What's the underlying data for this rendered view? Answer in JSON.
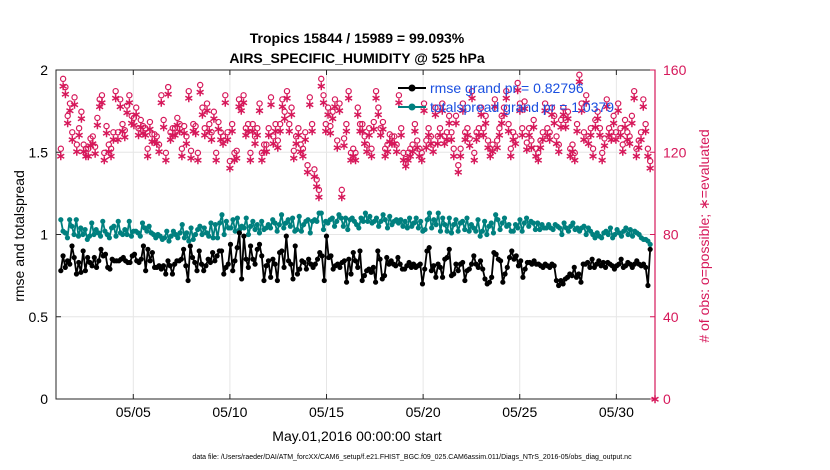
{
  "title_line1": "Tropics 15844 / 15989 = 99.093%",
  "title_line2": "AIRS_SPECIFIC_HUMIDITY @ 525 hPa",
  "xlabel": "May.01,2016 00:00:00 start",
  "ylabel": "rmse and totalspread",
  "y2label": "# of obs: o=possible; ∗=evaluated",
  "footer": "data file: /Users/raeder/DAI/ATM_forcXX/CAM6_setup/f.e21.FHIST_BGC.f09_025.CAM6assim.011/Diags_NTrS_2016-05/obs_diag_output.nc",
  "colors": {
    "rmse": "#000000",
    "spread": "#00807f",
    "obs": "#d6185a",
    "legend_text": "#1a4fe0"
  },
  "chart_data": {
    "type": "line",
    "xlim": [
      1,
      32
    ],
    "ylim": [
      0,
      2
    ],
    "y2lim": [
      0,
      160
    ],
    "grid": true,
    "legend_location": "top-right",
    "xticks": [
      5,
      10,
      15,
      20,
      25,
      30
    ],
    "xtick_labels": [
      "05/05",
      "05/10",
      "05/15",
      "05/20",
      "05/25",
      "05/30"
    ],
    "yticks": [
      0,
      0.5,
      1,
      1.5,
      2
    ],
    "ytick_labels": [
      "0",
      "0.5",
      "1",
      "1.5",
      "2"
    ],
    "y2ticks": [
      0,
      40,
      80,
      120,
      160
    ],
    "y2tick_labels": [
      "0",
      "40",
      "80",
      "120",
      "160"
    ],
    "series": [
      {
        "name": "rmse grand pr = 0.82796",
        "axis": "left",
        "values": [
          0.78,
          0.87,
          0.8,
          0.84,
          0.82,
          0.93,
          0.86,
          0.76,
          0.83,
          0.77,
          0.9,
          0.78,
          0.86,
          0.83,
          0.81,
          0.86,
          0.8,
          0.84,
          0.91,
          0.87,
          0.88,
          0.8,
          0.79,
          0.85,
          0.84,
          0.84,
          0.84,
          0.85,
          0.86,
          0.84,
          0.83,
          0.83,
          0.87,
          0.88,
          0.84,
          0.83,
          0.85,
          0.93,
          0.78,
          0.91,
          0.84,
          0.89,
          0.8,
          0.8,
          0.81,
          0.79,
          0.81,
          0.76,
          0.84,
          0.81,
          0.76,
          0.82,
          0.84,
          0.84,
          0.85,
          0.91,
          0.81,
          0.72,
          0.93,
          0.86,
          0.83,
          0.78,
          0.9,
          0.82,
          0.78,
          0.81,
          0.85,
          0.83,
          0.89,
          0.84,
          0.87,
          0.9,
          0.9,
          0.76,
          0.8,
          0.82,
          0.94,
          0.78,
          0.84,
          0.92,
          1.01,
          0.73,
          0.99,
          0.85,
          0.8,
          0.93,
          0.85,
          0.82,
          0.91,
          0.94,
          0.87,
          0.72,
          0.81,
          0.84,
          0.74,
          0.85,
          0.82,
          0.72,
          0.89,
          0.9,
          0.8,
          0.99,
          0.84,
          0.82,
          0.73,
          0.93,
          0.76,
          0.79,
          0.84,
          0.83,
          0.79,
          0.85,
          0.82,
          0.8,
          0.82,
          0.85,
          0.89,
          0.87,
          0.72,
          0.99,
          0.86,
          0.87,
          0.79,
          0.81,
          0.82,
          0.8,
          0.83,
          0.84,
          0.71,
          0.85,
          0.76,
          0.89,
          0.84,
          0.8,
          0.9,
          0.72,
          0.75,
          0.78,
          0.79,
          0.77,
          0.8,
          0.71,
          0.9,
          0.85,
          0.73,
          0.75,
          0.86,
          0.82,
          0.84,
          0.82,
          0.81,
          0.86,
          0.82,
          0.79,
          0.79,
          0.81,
          0.83,
          0.8,
          0.82,
          0.8,
          0.81,
          0.82,
          0.7,
          0.79,
          0.9,
          0.92,
          0.78,
          0.81,
          0.74,
          0.82,
          0.8,
          0.74,
          0.85,
          0.86,
          0.91,
          0.75,
          0.76,
          0.82,
          0.78,
          0.82,
          0.83,
          0.72,
          0.78,
          0.79,
          0.82,
          0.87,
          0.82,
          0.8,
          0.84,
          0.79,
          0.73,
          0.7,
          0.71,
          0.74,
          0.89,
          0.88,
          0.85,
          0.84,
          0.71,
          0.76,
          0.8,
          0.86,
          0.9,
          0.85,
          0.87,
          0.81,
          0.84,
          0.74,
          0.79,
          0.83,
          0.83,
          0.82,
          0.84,
          0.82,
          0.82,
          0.81,
          0.8,
          0.82,
          0.81,
          0.8,
          0.82,
          0.81,
          0.72,
          0.69,
          0.72,
          0.7,
          0.73,
          0.74,
          0.76,
          0.75,
          0.8,
          0.74,
          0.76,
          0.71,
          0.82,
          0.82,
          0.83,
          0.8,
          0.85,
          0.8,
          0.82,
          0.84,
          0.81,
          0.83,
          0.8,
          0.83,
          0.82,
          0.81,
          0.79,
          0.81,
          0.82,
          0.85,
          0.8,
          0.81,
          0.83,
          0.82,
          0.8,
          0.82,
          0.84,
          0.82,
          0.81,
          0.82,
          0.8,
          0.69,
          0.91
        ]
      },
      {
        "name": "totalspread grand pr = 1.0379",
        "axis": "left",
        "values": [
          1.09,
          1.02,
          1.01,
          0.98,
          1.09,
          1.05,
          1.0,
          1.09,
          0.99,
          1.04,
          1.0,
          1.03,
          0.97,
          0.99,
          1.07,
          1.0,
          1.03,
          1.01,
          0.99,
          1.08,
          1.02,
          1.0,
          0.98,
          1.04,
          1.05,
          0.99,
          1.08,
          1.01,
          1.0,
          1.03,
          1.0,
          1.08,
          0.99,
          1.02,
          1.02,
          1.01,
          0.99,
          1.07,
          1.04,
          1.02,
          1.05,
          1.01,
          1.0,
          0.98,
          1.0,
          0.99,
          0.97,
          0.98,
          1.02,
          0.96,
          0.99,
          1.02,
          1.0,
          0.98,
          1.01,
          1.06,
          0.98,
          1.01,
          0.96,
          1.04,
          0.97,
          1.0,
          1.03,
          1.05,
          1.0,
          1.04,
          1.01,
          0.99,
          1.07,
          0.98,
          1.06,
          0.98,
          1.07,
          1.12,
          1.0,
          1.08,
          1.04,
          1.04,
          1.09,
          1.02,
          1.1,
          1.03,
          1.05,
          1.04,
          1.1,
          1.0,
          1.05,
          1.08,
          1.03,
          1.06,
          1.01,
          1.08,
          1.03,
          1.04,
          1.06,
          1.04,
          1.09,
          1.07,
          1.02,
          1.06,
          1.12,
          1.04,
          1.07,
          1.09,
          1.05,
          1.1,
          1.02,
          1.03,
          1.11,
          1.02,
          1.06,
          1.08,
          1.09,
          1.01,
          1.08,
          1.09,
          1.08,
          1.13,
          1.13,
          1.03,
          1.08,
          1.07,
          1.09,
          1.1,
          1.05,
          1.08,
          1.12,
          1.1,
          1.05,
          1.1,
          1.03,
          1.09,
          1.1,
          1.08,
          1.06,
          1.04,
          1.1,
          1.08,
          1.13,
          1.08,
          1.11,
          1.07,
          1.08,
          1.1,
          1.05,
          1.08,
          1.12,
          1.09,
          1.04,
          1.11,
          1.06,
          1.08,
          1.09,
          1.07,
          1.09,
          1.05,
          1.08,
          1.04,
          1.1,
          1.05,
          1.07,
          1.1,
          1.04,
          1.08,
          1.02,
          1.03,
          1.09,
          1.13,
          1.04,
          1.09,
          1.06,
          1.13,
          1.02,
          1.1,
          1.06,
          1.02,
          1.1,
          1.01,
          1.06,
          1.09,
          1.02,
          1.07,
          1.08,
          1.03,
          1.1,
          1.02,
          1.06,
          1.04,
          1.02,
          1.09,
          0.99,
          1.02,
          1.08,
          1.0,
          1.05,
          1.07,
          1.01,
          1.12,
          1.09,
          1.03,
          1.07,
          1.1,
          1.05,
          1.06,
          1.02,
          1.02,
          1.06,
          1.04,
          1.09,
          1.02,
          1.07,
          1.1,
          1.05,
          1.08,
          1.07,
          1.03,
          1.07,
          1.03,
          1.06,
          1.04,
          1.04,
          1.06,
          1.04,
          1.03,
          1.06,
          1.05,
          1.04,
          1.0,
          1.07,
          1.04,
          1.02,
          1.05,
          1.07,
          1.03,
          1.04,
          1.02,
          1.04,
          1.05,
          1.0,
          1.04,
          1.02,
          1.0,
          0.98,
          1.01,
          0.99,
          0.98,
          1.01,
          1.02,
          1.0,
          1.04,
          0.98,
          1.0,
          1.03,
          1.01,
          0.99,
          1.02,
          1.04,
          1.0,
          1.03,
          0.99,
          1.02,
          1.01,
          1.0,
          0.98,
          0.97,
          0.97,
          0.96,
          0.94
        ]
      }
    ],
    "obs_possible": [
      120,
      154,
      150,
      136,
      142,
      128,
      145,
      122,
      130,
      138,
      122,
      120,
      120,
      125,
      126,
      121,
      135,
      144,
      146,
      118,
      131,
      122,
      120,
      128,
      148,
      128,
      144,
      132,
      129,
      141,
      146,
      136,
      135,
      140,
      130,
      134,
      131,
      130,
      120,
      133,
      127,
      127,
      126,
      122,
      146,
      134,
      118,
      150,
      128,
      130,
      130,
      135,
      132,
      120,
      131,
      126,
      148,
      119,
      132,
      131,
      118,
      151,
      140,
      130,
      142,
      132,
      128,
      138,
      118,
      133,
      128,
      126,
      146,
      128,
      114,
      132,
      118,
      119,
      144,
      142,
      146,
      130,
      132,
      118,
      132,
      126,
      130,
      142,
      118,
      122,
      122,
      130,
      145,
      126,
      132,
      124,
      132,
      144,
      138,
      148,
      132,
      140,
      119,
      126,
      130,
      122,
      120,
      128,
      112,
      145,
      132,
      110,
      105,
      100,
      154,
      146,
      132,
      140,
      131,
      138,
      144,
      124,
      142,
      100,
      125,
      132,
      148,
      118,
      120,
      118,
      140,
      132,
      132,
      126,
      122,
      130,
      120,
      133,
      148,
      140,
      130,
      133,
      120,
      122,
      127,
      126,
      126,
      122,
      146,
      130,
      118,
      115,
      118,
      120,
      122,
      132,
      124,
      120,
      118,
      142,
      124,
      130,
      126,
      122,
      140,
      126,
      130,
      142,
      126,
      128,
      136,
      128,
      120,
      136,
      112,
      120,
      142,
      128,
      130,
      125,
      148,
      118,
      128,
      130,
      140,
      130,
      136,
      124,
      120,
      122,
      144,
      124,
      130,
      136,
      140,
      148,
      132,
      120,
      128,
      126,
      152,
      142,
      130,
      143,
      123,
      130,
      124,
      134,
      120,
      118,
      124,
      128,
      142,
      130,
      128,
      140,
      136,
      126,
      122,
      134,
      140,
      134,
      138,
      120,
      122,
      118,
      132,
      156,
      142,
      128,
      146,
      126,
      130,
      120,
      134,
      138,
      130,
      118,
      125,
      144,
      130,
      128,
      136,
      128,
      142,
      130,
      122,
      134,
      128,
      126,
      136,
      148,
      120,
      124,
      128,
      144,
      132,
      120,
      114
    ],
    "obs_evaluated": [
      120,
      154,
      150,
      136,
      142,
      128,
      145,
      122,
      130,
      138,
      122,
      120,
      120,
      125,
      126,
      121,
      135,
      144,
      146,
      118,
      131,
      122,
      120,
      128,
      148,
      128,
      144,
      132,
      129,
      141,
      146,
      136,
      135,
      140,
      130,
      134,
      131,
      130,
      120,
      133,
      127,
      127,
      126,
      122,
      146,
      134,
      118,
      150,
      128,
      130,
      130,
      135,
      132,
      120,
      131,
      126,
      148,
      119,
      132,
      131,
      118,
      151,
      140,
      130,
      142,
      132,
      128,
      138,
      118,
      133,
      128,
      126,
      146,
      128,
      114,
      132,
      118,
      119,
      144,
      142,
      146,
      130,
      132,
      118,
      132,
      126,
      130,
      142,
      118,
      122,
      122,
      130,
      145,
      126,
      132,
      124,
      132,
      144,
      138,
      148,
      132,
      140,
      119,
      126,
      130,
      122,
      120,
      128,
      112,
      145,
      132,
      110,
      105,
      100,
      154,
      146,
      132,
      140,
      131,
      138,
      144,
      124,
      142,
      100,
      125,
      132,
      148,
      118,
      120,
      118,
      140,
      132,
      132,
      126,
      122,
      130,
      120,
      133,
      148,
      140,
      130,
      133,
      120,
      122,
      127,
      126,
      126,
      122,
      146,
      130,
      118,
      115,
      118,
      120,
      122,
      132,
      124,
      120,
      118,
      142,
      124,
      130,
      126,
      122,
      140,
      126,
      130,
      142,
      126,
      128,
      136,
      128,
      120,
      136,
      112,
      120,
      142,
      128,
      130,
      125,
      148,
      118,
      128,
      130,
      140,
      130,
      136,
      124,
      120,
      122,
      144,
      124,
      130,
      136,
      140,
      148,
      132,
      120,
      128,
      126,
      152,
      142,
      130,
      143,
      123,
      130,
      124,
      134,
      120,
      118,
      124,
      128,
      142,
      130,
      128,
      140,
      136,
      126,
      122,
      134,
      140,
      134,
      138,
      120,
      122,
      118,
      132,
      156,
      142,
      128,
      146,
      126,
      130,
      120,
      134,
      138,
      130,
      118,
      125,
      144,
      130,
      128,
      136,
      128,
      142,
      130,
      122,
      134,
      128,
      126,
      136,
      148,
      120,
      124,
      128,
      144,
      132,
      120,
      114
    ]
  }
}
